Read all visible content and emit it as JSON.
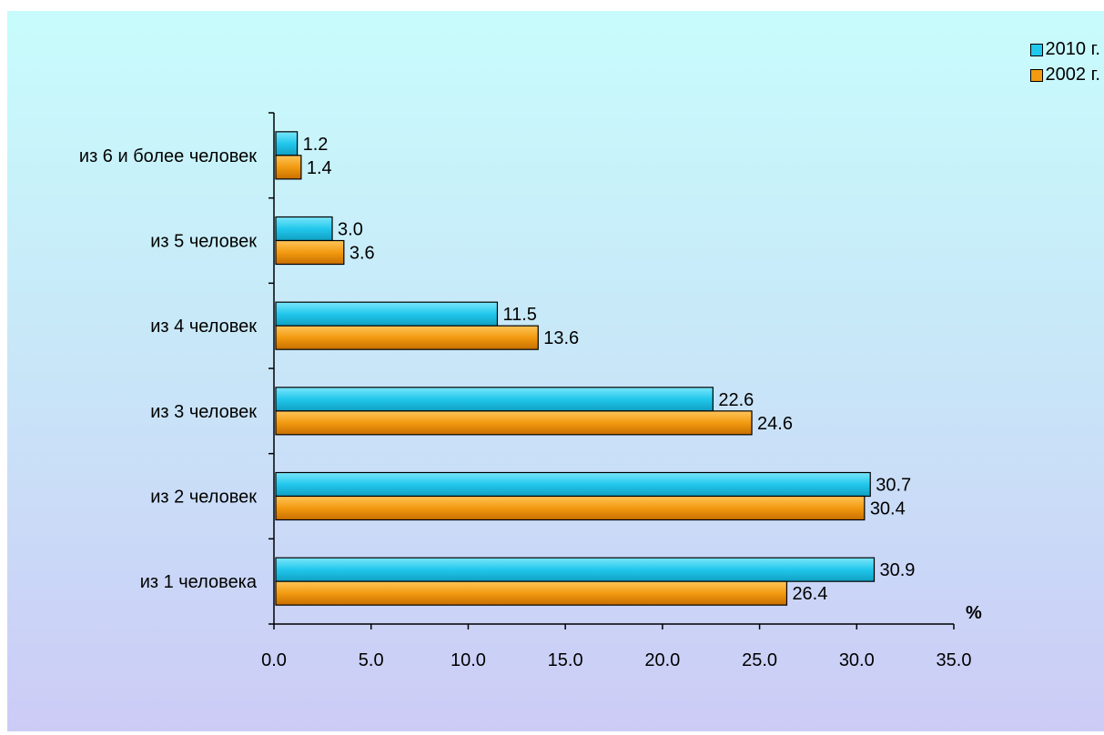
{
  "chart_data": {
    "type": "bar",
    "orientation": "horizontal",
    "categories": [
      "из 1 человека",
      "из 2 человек",
      "из 3 человек",
      "из 4 человек",
      "из 5 человек",
      "из 6 и более человек"
    ],
    "series": [
      {
        "name": "2010 г.",
        "color": "#1fc8ec",
        "values": [
          30.9,
          30.7,
          22.6,
          11.5,
          3.0,
          1.2
        ]
      },
      {
        "name": "2002 г.",
        "color": "#f29a10",
        "values": [
          26.4,
          30.4,
          24.6,
          13.6,
          3.6,
          1.4
        ]
      }
    ],
    "data_labels": [
      [
        "30.9",
        "30.7",
        "22.6",
        "11.5",
        "3.0",
        "1.2"
      ],
      [
        "26.4",
        "30.4",
        "24.6",
        "13.6",
        "3.6",
        "1.4"
      ]
    ],
    "x_ticks": [
      "0.0",
      "5.0",
      "10.0",
      "15.0",
      "20.0",
      "25.0",
      "30.0",
      "35.0"
    ],
    "xlim": [
      0,
      35
    ],
    "xlabel": "%",
    "grid": false,
    "legend_position": "top-right"
  }
}
